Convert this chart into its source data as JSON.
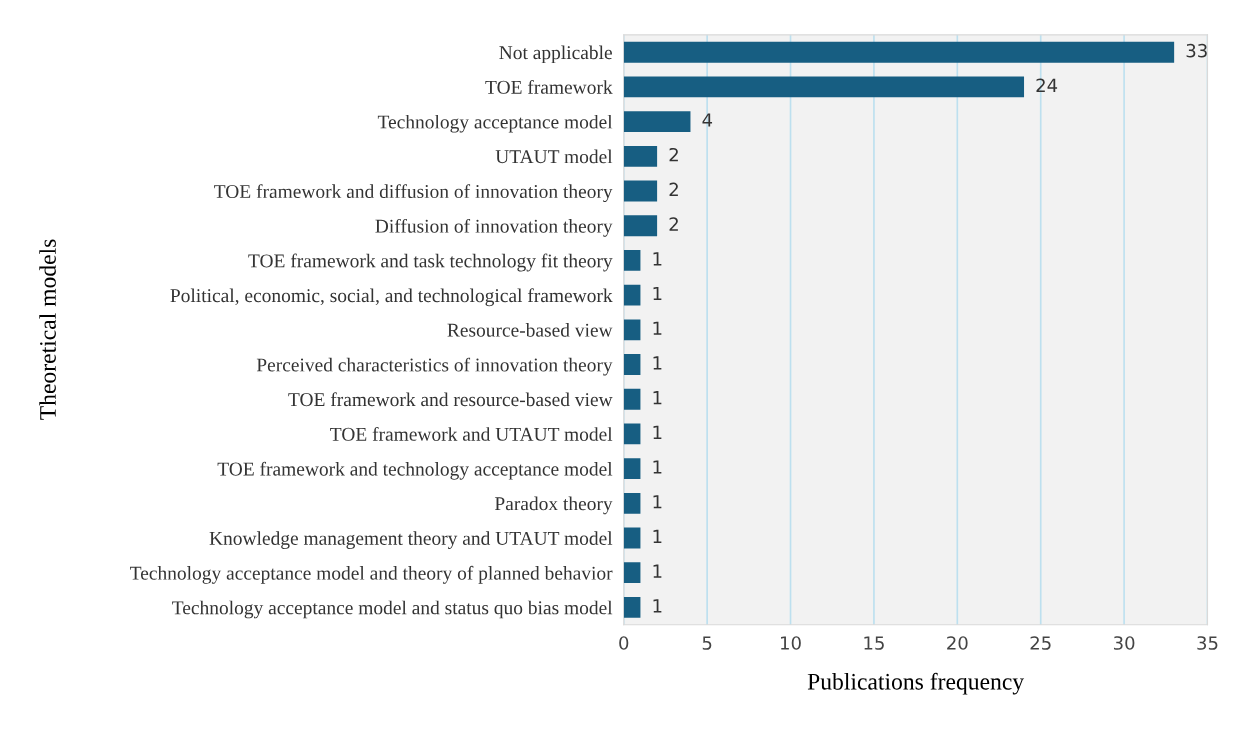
{
  "chart_data": {
    "type": "bar",
    "orientation": "horizontal",
    "xlabel": "Publications frequency",
    "ylabel": "Theoretical models",
    "categories": [
      "Not applicable",
      "TOE framework",
      "Technology acceptance model",
      "UTAUT model",
      "TOE framework and diffusion of innovation theory",
      "Diffusion of innovation theory",
      "TOE framework and task technology fit theory",
      "Political, economic, social, and technological framework",
      "Resource-based view",
      "Perceived characteristics of innovation theory",
      "TOE framework and resource-based view",
      "TOE framework and UTAUT model",
      "TOE framework and technology acceptance model",
      "Paradox theory",
      "Knowledge management theory and UTAUT model",
      "Technology acceptance model and theory of planned behavior",
      "Technology acceptance model and status quo bias model"
    ],
    "values": [
      33,
      24,
      4,
      2,
      2,
      2,
      1,
      1,
      1,
      1,
      1,
      1,
      1,
      1,
      1,
      1,
      1
    ],
    "color": "#175e82",
    "xlim": [
      0,
      35
    ],
    "xticks": [
      0,
      5,
      10,
      15,
      20,
      25,
      30,
      35
    ],
    "grid": "x",
    "data_labels": true,
    "legend": false
  }
}
